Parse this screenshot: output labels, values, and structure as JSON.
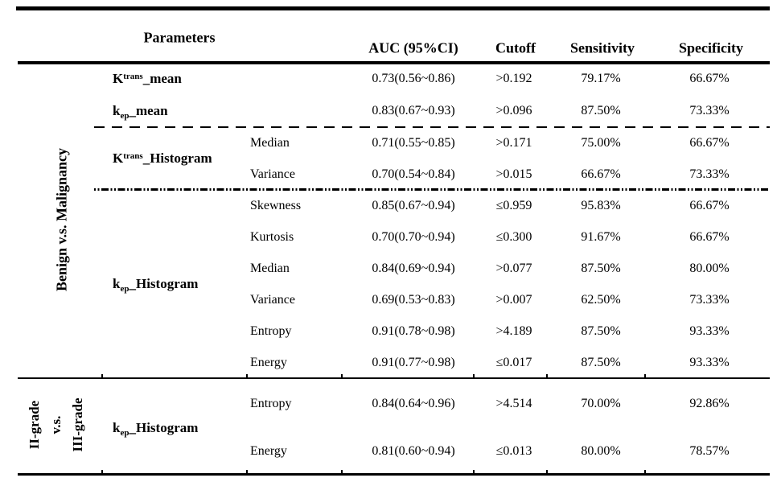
{
  "title_row": {
    "parameters": "Parameters",
    "auc": "AUC (95%CI)",
    "cutoff": "Cutoff",
    "sensitivity": "Sensitivity",
    "specificity": "Specificity"
  },
  "sections": [
    {
      "side_label": "Benign v.s. Malignancy",
      "groups": [
        {
          "param": "K^{trans}_mean",
          "rows": [
            {
              "sub": "",
              "auc": "0.73(0.56~0.86)",
              "cutoff": ">0.192",
              "sensitivity": "79.17%",
              "specificity": "66.67%"
            }
          ]
        },
        {
          "param": "k_{ep}_mean",
          "rows": [
            {
              "sub": "",
              "auc": "0.83(0.67~0.93)",
              "cutoff": ">0.096",
              "sensitivity": "87.50%",
              "specificity": "73.33%"
            }
          ]
        },
        {
          "param": "K^{trans}_Histogram",
          "rows": [
            {
              "sub": "Median",
              "auc": "0.71(0.55~0.85)",
              "cutoff": ">0.171",
              "sensitivity": "75.00%",
              "specificity": "66.67%"
            },
            {
              "sub": "Variance",
              "auc": "0.70(0.54~0.84)",
              "cutoff": ">0.015",
              "sensitivity": "66.67%",
              "specificity": "73.33%"
            }
          ]
        },
        {
          "param": "k_{ep}_Histogram",
          "rows": [
            {
              "sub": "Skewness",
              "auc": "0.85(0.67~0.94)",
              "cutoff": "≤0.959",
              "sensitivity": "95.83%",
              "specificity": "66.67%"
            },
            {
              "sub": "Kurtosis",
              "auc": "0.70(0.70~0.94)",
              "cutoff": "≤0.300",
              "sensitivity": "91.67%",
              "specificity": "66.67%"
            },
            {
              "sub": "Median",
              "auc": "0.84(0.69~0.94)",
              "cutoff": ">0.077",
              "sensitivity": "87.50%",
              "specificity": "80.00%"
            },
            {
              "sub": "Variance",
              "auc": "0.69(0.53~0.83)",
              "cutoff": ">0.007",
              "sensitivity": "62.50%",
              "specificity": "73.33%"
            },
            {
              "sub": "Entropy",
              "auc": "0.91(0.78~0.98)",
              "cutoff": ">4.189",
              "sensitivity": "87.50%",
              "specificity": "93.33%"
            },
            {
              "sub": "Energy",
              "auc": "0.91(0.77~0.98)",
              "cutoff": "≤0.017",
              "sensitivity": "87.50%",
              "specificity": "93.33%"
            }
          ]
        }
      ]
    },
    {
      "side_labels": [
        "II-grade",
        "v.s.",
        "III-grade"
      ],
      "groups": [
        {
          "param": "k_{ep}_Histogram",
          "rows": [
            {
              "sub": "Entropy",
              "auc": "0.84(0.64~0.96)",
              "cutoff": ">4.514",
              "sensitivity": "70.00%",
              "specificity": "92.86%"
            },
            {
              "sub": "Energy",
              "auc": "0.81(0.60~0.94)",
              "cutoff": "≤0.013",
              "sensitivity": "80.00%",
              "specificity": "78.57%"
            }
          ]
        }
      ]
    }
  ]
}
